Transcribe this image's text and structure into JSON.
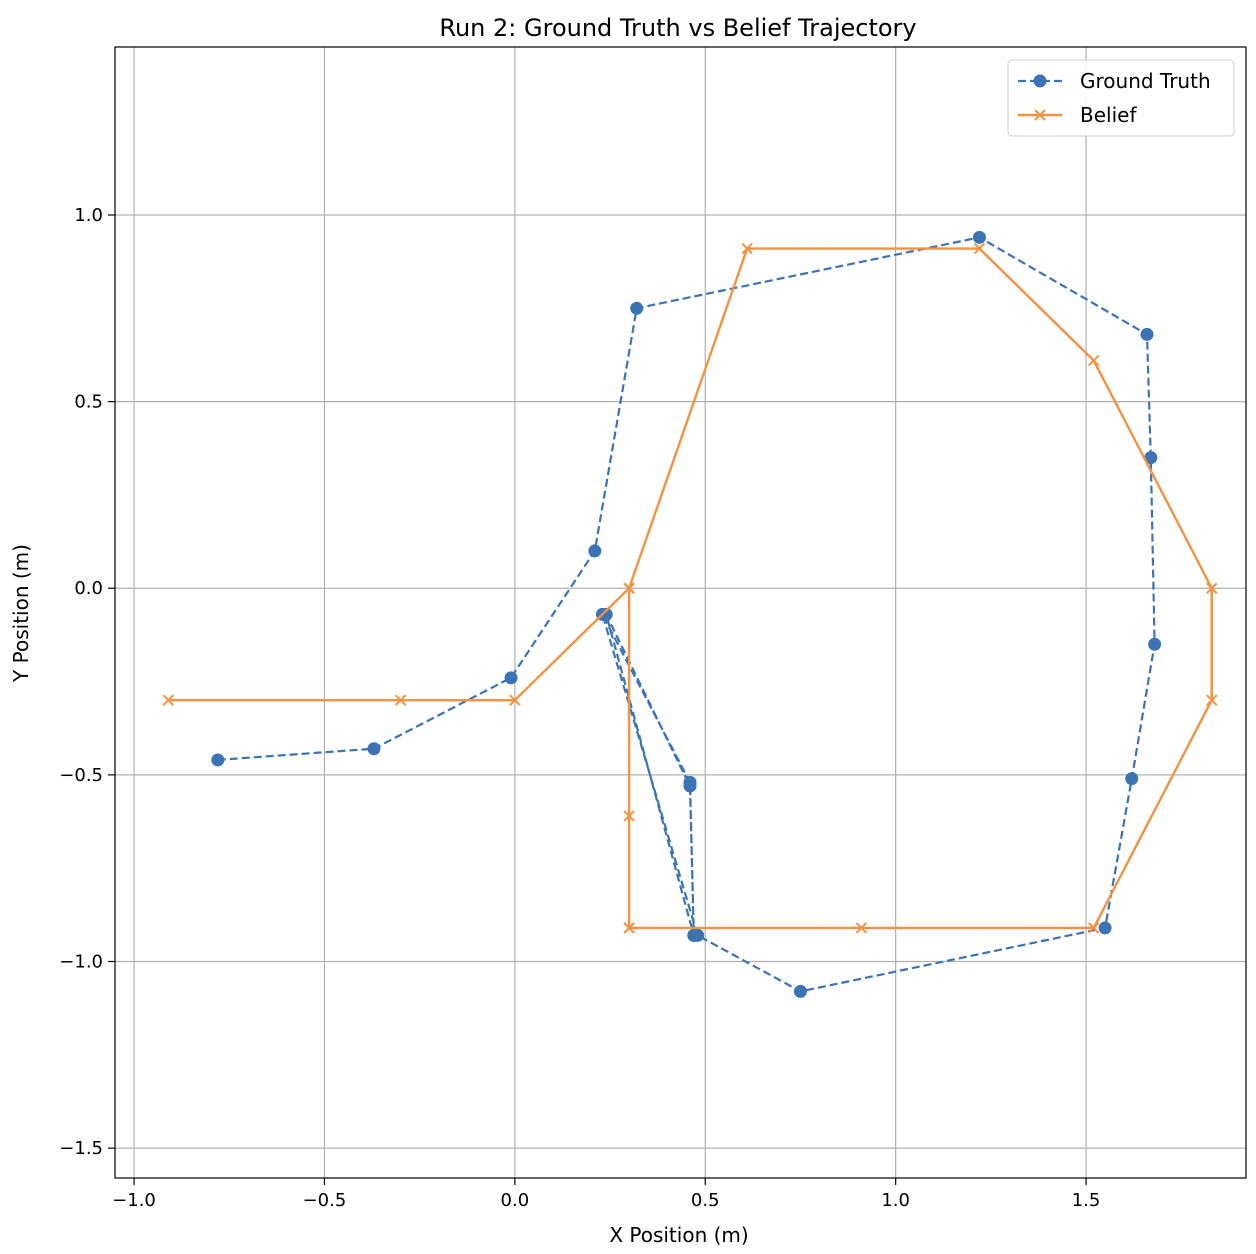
{
  "chart_data": {
    "type": "line",
    "title": "Run 2: Ground Truth vs Belief Trajectory",
    "xlabel": "X Position (m)",
    "ylabel": "Y Position (m)",
    "xlim": [
      -1.05,
      1.92
    ],
    "ylim": [
      -1.58,
      1.45
    ],
    "xticks": [
      -1.0,
      -0.5,
      0.0,
      0.5,
      1.0,
      1.5
    ],
    "xtick_labels": [
      "−1.0",
      "−0.5",
      "0.0",
      "0.5",
      "1.0",
      "1.5"
    ],
    "yticks": [
      -1.5,
      -1.0,
      -0.5,
      0.0,
      0.5,
      1.0
    ],
    "ytick_labels": [
      "−1.5",
      "−1.0",
      "−0.5",
      "0.0",
      "0.5",
      "1.0"
    ],
    "grid": true,
    "legend_position": "top-right",
    "series": [
      {
        "name": "Ground Truth",
        "color": "#3b73b3",
        "style": "dashed",
        "marker": "circle",
        "x": [
          -0.78,
          -0.37,
          -0.01,
          0.21,
          0.32,
          1.22,
          1.66,
          1.67,
          1.68,
          1.62,
          1.55,
          0.75,
          0.48,
          0.23,
          0.46,
          0.47,
          0.24,
          0.46,
          0.47
        ],
        "y": [
          -0.46,
          -0.43,
          -0.24,
          0.1,
          0.75,
          0.94,
          0.68,
          0.35,
          -0.15,
          -0.51,
          -0.91,
          -1.08,
          -0.93,
          -0.07,
          -0.52,
          -0.93,
          -0.07,
          -0.53,
          -0.93
        ]
      },
      {
        "name": "Belief",
        "color": "#f39240",
        "style": "solid",
        "marker": "x",
        "x": [
          -0.91,
          -0.3,
          0.0,
          0.3,
          0.61,
          1.22,
          1.52,
          1.83,
          1.83,
          1.52,
          0.91,
          0.3,
          0.3,
          0.3,
          0.3,
          0.3
        ],
        "y": [
          -0.3,
          -0.3,
          -0.3,
          0.0,
          0.91,
          0.91,
          0.61,
          0.0,
          -0.3,
          -0.91,
          -0.91,
          -0.91,
          -0.61,
          0.0,
          -0.91,
          0.0
        ]
      }
    ]
  }
}
